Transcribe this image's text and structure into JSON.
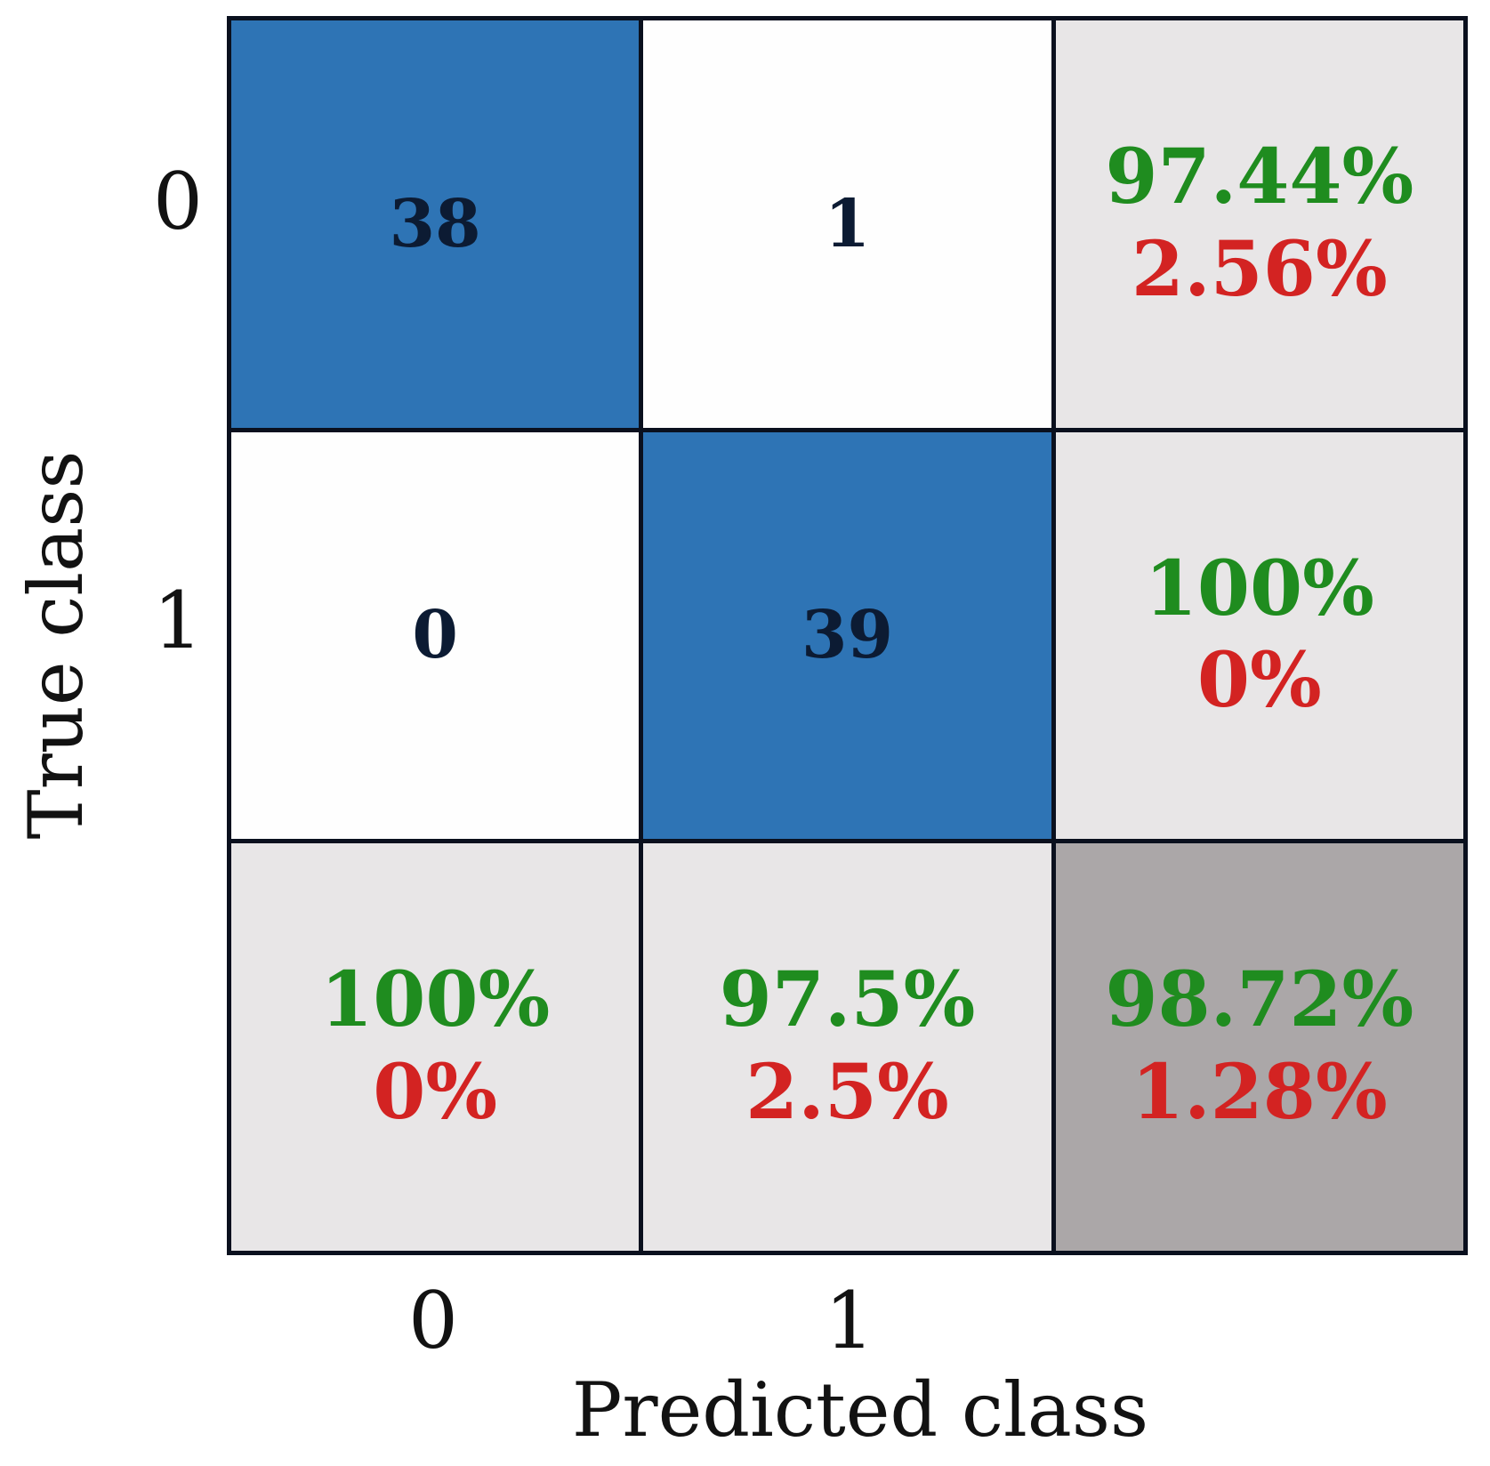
{
  "chart_data": {
    "type": "heatmap",
    "variant": "confusion_matrix",
    "title": "",
    "xlabel": "Predicted class",
    "ylabel": "True class",
    "x_tick_labels": [
      "0",
      "1"
    ],
    "y_tick_labels": [
      "0",
      "1"
    ],
    "classes": [
      "0",
      "1"
    ],
    "matrix": [
      [
        38,
        1
      ],
      [
        0,
        39
      ]
    ],
    "row_percent": [
      {
        "green": "97.44%",
        "red": "2.56%"
      },
      {
        "green": "100%",
        "red": "0%"
      }
    ],
    "col_percent": [
      {
        "green": "100%",
        "red": "0%"
      },
      {
        "green": "97.5%",
        "red": "2.5%"
      }
    ],
    "total_percent": {
      "green": "98.72%",
      "red": "1.28%"
    },
    "legend_position": "none",
    "grid_on": true,
    "colors": {
      "diagonal_fill": "#2E74B5",
      "off_diagonal_fill": "#FEFEFE",
      "summary_fill": "#E8E6E7",
      "overall_fill": "#ABA7A8",
      "correct_text_green": "#1F8C1F",
      "error_text_red": "#D32322",
      "count_text_navy": "#0C1B33",
      "grid_line": "#0A101E"
    }
  }
}
